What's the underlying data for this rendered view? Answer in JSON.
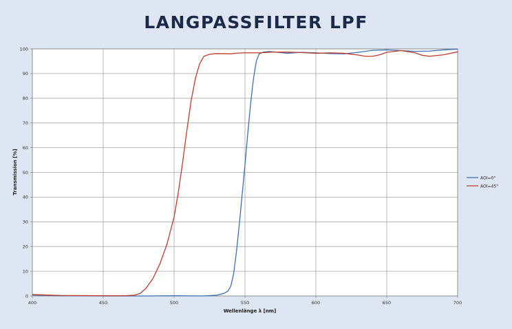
{
  "chart_data": {
    "type": "line",
    "title": "LANGPASSFILTER LPF",
    "xlabel": "Wellenlänge λ [nm]",
    "ylabel": "Transmission [%]",
    "xlim": [
      400,
      700
    ],
    "ylim": [
      0,
      100
    ],
    "xticks": [
      400,
      450,
      500,
      550,
      600,
      650,
      700
    ],
    "yticks": [
      0,
      10,
      20,
      30,
      40,
      50,
      60,
      70,
      80,
      90,
      100
    ],
    "grid": true,
    "legend_position": "right",
    "series": [
      {
        "name": "AOI=0°",
        "color": "#3a6fb5",
        "points": [
          [
            400,
            0.4
          ],
          [
            420,
            0.1
          ],
          [
            450,
            0
          ],
          [
            480,
            0
          ],
          [
            500,
            0.1
          ],
          [
            520,
            0
          ],
          [
            530,
            0.3
          ],
          [
            535,
            1
          ],
          [
            538,
            2
          ],
          [
            540,
            4
          ],
          [
            542,
            9
          ],
          [
            544,
            18
          ],
          [
            546,
            29
          ],
          [
            548,
            41
          ],
          [
            550,
            53
          ],
          [
            552,
            66
          ],
          [
            554,
            78
          ],
          [
            556,
            88
          ],
          [
            558,
            95
          ],
          [
            560,
            98
          ],
          [
            563,
            98.7
          ],
          [
            567,
            98.9
          ],
          [
            570,
            98.8
          ],
          [
            575,
            98.5
          ],
          [
            580,
            98.2
          ],
          [
            590,
            98.6
          ],
          [
            600,
            98.4
          ],
          [
            610,
            98.1
          ],
          [
            620,
            98.0
          ],
          [
            630,
            98.6
          ],
          [
            640,
            99.4
          ],
          [
            650,
            99.6
          ],
          [
            660,
            99.3
          ],
          [
            670,
            99.0
          ],
          [
            680,
            99.1
          ],
          [
            690,
            99.6
          ],
          [
            700,
            99.9
          ]
        ]
      },
      {
        "name": "AOI=45°",
        "color": "#c0392b",
        "points": [
          [
            400,
            0.6
          ],
          [
            420,
            0.2
          ],
          [
            450,
            0.1
          ],
          [
            465,
            0.1
          ],
          [
            472,
            0.3
          ],
          [
            476,
            1
          ],
          [
            480,
            3
          ],
          [
            485,
            7
          ],
          [
            490,
            13
          ],
          [
            495,
            21
          ],
          [
            500,
            32
          ],
          [
            503,
            42
          ],
          [
            506,
            54
          ],
          [
            509,
            67
          ],
          [
            512,
            79
          ],
          [
            515,
            88
          ],
          [
            518,
            94
          ],
          [
            521,
            97
          ],
          [
            525,
            97.8
          ],
          [
            530,
            98.1
          ],
          [
            540,
            98.0
          ],
          [
            545,
            98.3
          ],
          [
            550,
            98.4
          ],
          [
            560,
            98.4
          ],
          [
            570,
            98.7
          ],
          [
            580,
            98.7
          ],
          [
            590,
            98.5
          ],
          [
            600,
            98.2
          ],
          [
            610,
            98.4
          ],
          [
            620,
            98.2
          ],
          [
            630,
            97.5
          ],
          [
            635,
            97.0
          ],
          [
            640,
            97.0
          ],
          [
            645,
            97.6
          ],
          [
            650,
            98.6
          ],
          [
            660,
            99.3
          ],
          [
            670,
            98.4
          ],
          [
            675,
            97.4
          ],
          [
            680,
            97.0
          ],
          [
            690,
            97.6
          ],
          [
            700,
            98.8
          ]
        ]
      }
    ]
  }
}
